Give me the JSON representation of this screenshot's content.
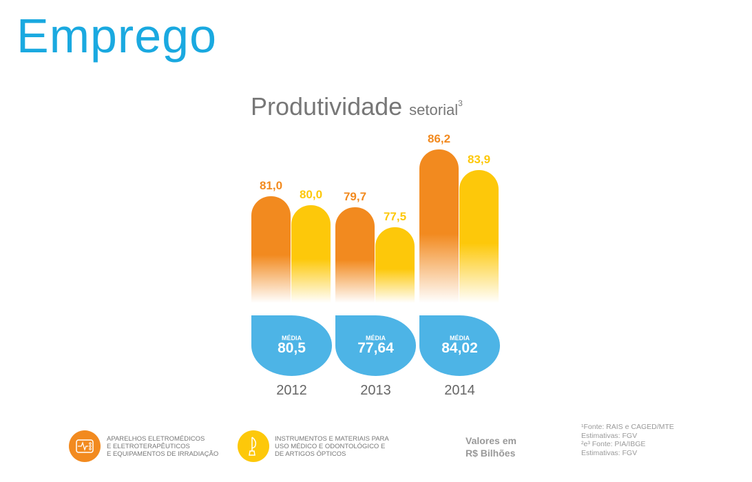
{
  "header": {
    "title": "Emprego",
    "subtitle_main": "Produtividade",
    "subtitle_small": "setorial",
    "subtitle_sup": "3"
  },
  "chart_data": {
    "type": "bar",
    "title": "Produtividade setorial",
    "categories": [
      "2012",
      "2013",
      "2014"
    ],
    "series": [
      {
        "name": "APARELHOS ELETROMÉDICOS E ELETROTERAPÊUTICOS E EQUIPAMENTOS DE IRRADIAÇÃO",
        "color": "#f28a1f",
        "values": [
          81.0,
          79.7,
          86.2
        ],
        "labels": [
          "81,0",
          "79,7",
          "86,2"
        ]
      },
      {
        "name": "INSTRUMENTOS E MATERIAIS PARA USO MÉDICO E ODONTOLÓGICO E DE ARTIGOS ÓPTICOS",
        "color": "#fdc80a",
        "values": [
          80.0,
          77.5,
          83.9
        ],
        "labels": [
          "80,0",
          "77,5",
          "83,9"
        ]
      }
    ],
    "averages": {
      "label": "MÉDIA",
      "values": [
        "80,5",
        "77,64",
        "84,02"
      ]
    }
  },
  "legend": {
    "line1a": "APARELHOS ELETROMÉDICOS",
    "line1b": "E ELETROTERAPÊUTICOS",
    "line1c": "E EQUIPAMENTOS DE IRRADIAÇÃO",
    "line2a": "INSTRUMENTOS E MATERIAIS PARA",
    "line2b": "USO MÉDICO E ODONTOLÓGICO E",
    "line2c": "DE ARTIGOS ÓPTICOS"
  },
  "units": {
    "line1": "Valores em",
    "line2": "R$ Bilhões"
  },
  "sources": [
    "¹Fonte: RAIS e CAGED/MTE",
    "Estimativas: FGV",
    "²e³ Fonte: PIA/IBGE",
    "Estimativas: FGV"
  ]
}
